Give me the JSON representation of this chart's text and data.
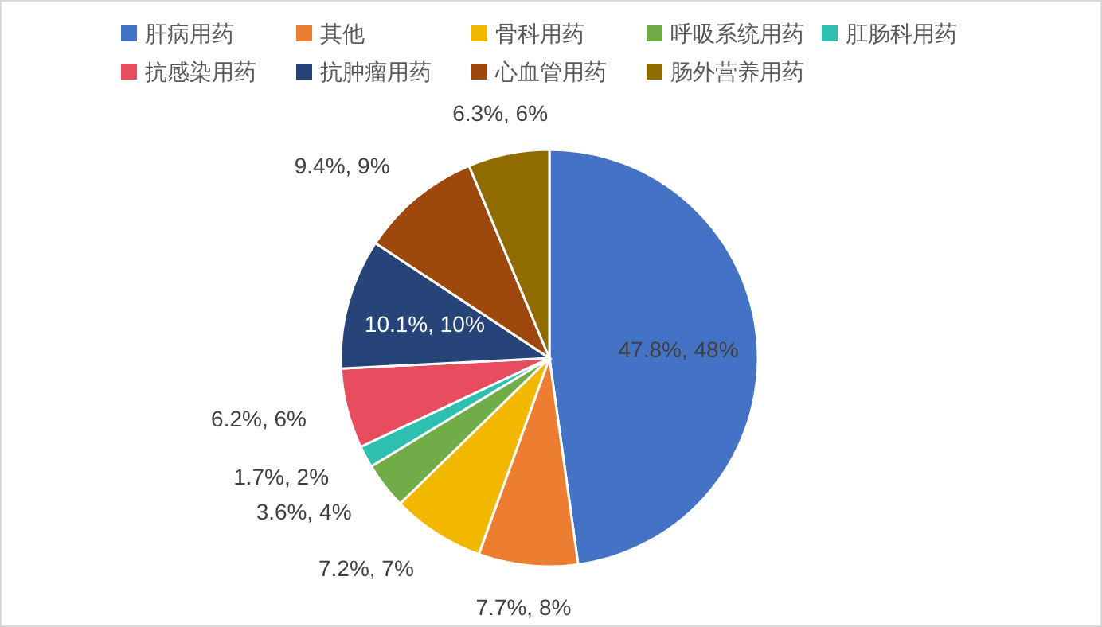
{
  "chart_data": {
    "type": "pie",
    "categories": [
      "肝病用药",
      "其他",
      "骨科用药",
      "呼吸系统用药",
      "肛肠科用药",
      "抗感染用药",
      "抗肿瘤用药",
      "心血管用药",
      "肠外营养用药"
    ],
    "values": [
      47.8,
      7.7,
      7.2,
      3.6,
      1.7,
      6.2,
      10.1,
      9.4,
      6.3
    ],
    "value_labels": [
      "47.8%, 48%",
      "7.7%, 8%",
      "7.2%, 7%",
      "3.6%, 4%",
      "1.7%, 2%",
      "6.2%, 6%",
      "10.1%, 10%",
      "9.4%, 9%",
      "6.3%, 6%"
    ],
    "colors": [
      "#4472c4",
      "#ed7d31",
      "#f2b800",
      "#70ad47",
      "#2dbfb0",
      "#e84c5f",
      "#264478",
      "#9e480e",
      "#8f6b00"
    ],
    "legend": "top"
  }
}
